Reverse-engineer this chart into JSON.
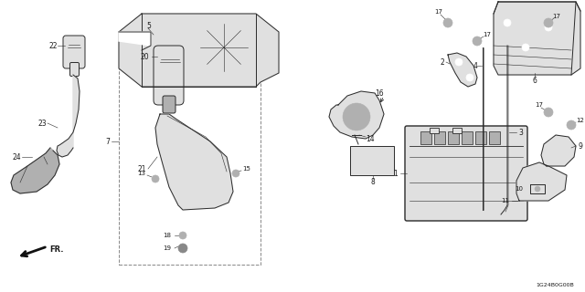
{
  "bg_color": "#ffffff",
  "line_color": "#2a2a2a",
  "label_color": "#1a1a1a",
  "diagram_code": "1G24B0G00B",
  "figsize": [
    6.4,
    3.2
  ],
  "dpi": 100,
  "gray_fill": "#c8c8c8",
  "light_gray": "#e0e0e0",
  "mid_gray": "#b0b0b0"
}
